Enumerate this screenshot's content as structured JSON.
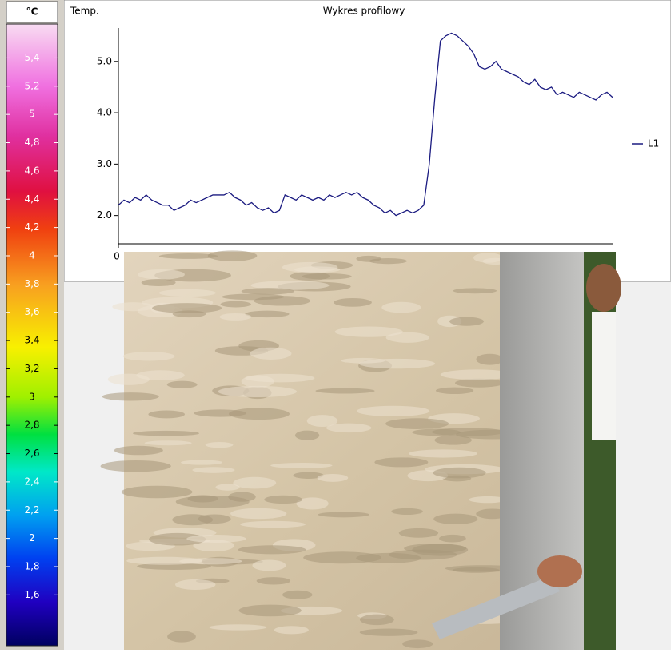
{
  "chart_data": [
    {
      "type": "line",
      "title": "Wykres profilowy",
      "y_label": "Temp.",
      "x": [
        0,
        1,
        2,
        3,
        4,
        5,
        6,
        7,
        8,
        9,
        10,
        11,
        12,
        13,
        14,
        15,
        16,
        17,
        18,
        19,
        20,
        21,
        22,
        23,
        24,
        25,
        26,
        27,
        28,
        29,
        30,
        31,
        32,
        33,
        34,
        35,
        36,
        37,
        38,
        39,
        40,
        41,
        42,
        43,
        44,
        45,
        46,
        47,
        48,
        49,
        50,
        51,
        52,
        53,
        54,
        55,
        56,
        57,
        58,
        59,
        60,
        61,
        62,
        63,
        64,
        65,
        66,
        67,
        68,
        69,
        70,
        71,
        72,
        73,
        74,
        75,
        76,
        77,
        78,
        79,
        80,
        81,
        82,
        83,
        84,
        85,
        86,
        87,
        88,
        89
      ],
      "series": [
        {
          "name": "L1",
          "color": "#1a1a80",
          "values": [
            2.2,
            2.3,
            2.25,
            2.35,
            2.3,
            2.4,
            2.3,
            2.25,
            2.2,
            2.2,
            2.1,
            2.15,
            2.2,
            2.3,
            2.25,
            2.3,
            2.35,
            2.4,
            2.4,
            2.4,
            2.45,
            2.35,
            2.3,
            2.2,
            2.25,
            2.15,
            2.1,
            2.15,
            2.05,
            2.1,
            2.4,
            2.35,
            2.3,
            2.4,
            2.35,
            2.3,
            2.35,
            2.3,
            2.4,
            2.35,
            2.4,
            2.45,
            2.4,
            2.45,
            2.35,
            2.3,
            2.2,
            2.15,
            2.05,
            2.1,
            2.0,
            2.05,
            2.1,
            2.05,
            2.1,
            2.2,
            3.0,
            4.3,
            5.4,
            5.5,
            5.55,
            5.5,
            5.4,
            5.3,
            5.15,
            4.9,
            4.85,
            4.9,
            5.0,
            4.85,
            4.8,
            4.75,
            4.7,
            4.6,
            4.55,
            4.65,
            4.5,
            4.45,
            4.5,
            4.35,
            4.4,
            4.35,
            4.3,
            4.4,
            4.35,
            4.3,
            4.25,
            4.35,
            4.4,
            4.3
          ]
        }
      ],
      "xlim": [
        0,
        89
      ],
      "xticks": [
        0
      ],
      "ylim": [
        1.45,
        5.65
      ],
      "yticks": [
        {
          "value": 2,
          "label": "2.0"
        },
        {
          "value": 3,
          "label": "3.0"
        },
        {
          "value": 4,
          "label": "4.0"
        },
        {
          "value": 5,
          "label": "5.0"
        }
      ],
      "legend": "right"
    },
    {
      "type": "colorbar",
      "unit": "°C",
      "range": [
        1.24,
        5.64
      ],
      "ticks": [
        {
          "value": 5.4,
          "label": "5,4"
        },
        {
          "value": 5.2,
          "label": "5,2"
        },
        {
          "value": 5,
          "label": "5"
        },
        {
          "value": 4.8,
          "label": "4,8"
        },
        {
          "value": 4.6,
          "label": "4,6"
        },
        {
          "value": 4.4,
          "label": "4,4"
        },
        {
          "value": 4.2,
          "label": "4,2"
        },
        {
          "value": 4,
          "label": "4"
        },
        {
          "value": 3.8,
          "label": "3,8"
        },
        {
          "value": 3.6,
          "label": "3,6"
        },
        {
          "value": 3.4,
          "label": "3,4"
        },
        {
          "value": 3.2,
          "label": "3,2"
        },
        {
          "value": 3,
          "label": "3"
        },
        {
          "value": 2.8,
          "label": "2,8"
        },
        {
          "value": 2.6,
          "label": "2,6"
        },
        {
          "value": 2.4,
          "label": "2,4"
        },
        {
          "value": 2.2,
          "label": "2,2"
        },
        {
          "value": 2,
          "label": "2"
        },
        {
          "value": 1.8,
          "label": "1,8"
        },
        {
          "value": 1.6,
          "label": "1,6"
        }
      ]
    }
  ]
}
